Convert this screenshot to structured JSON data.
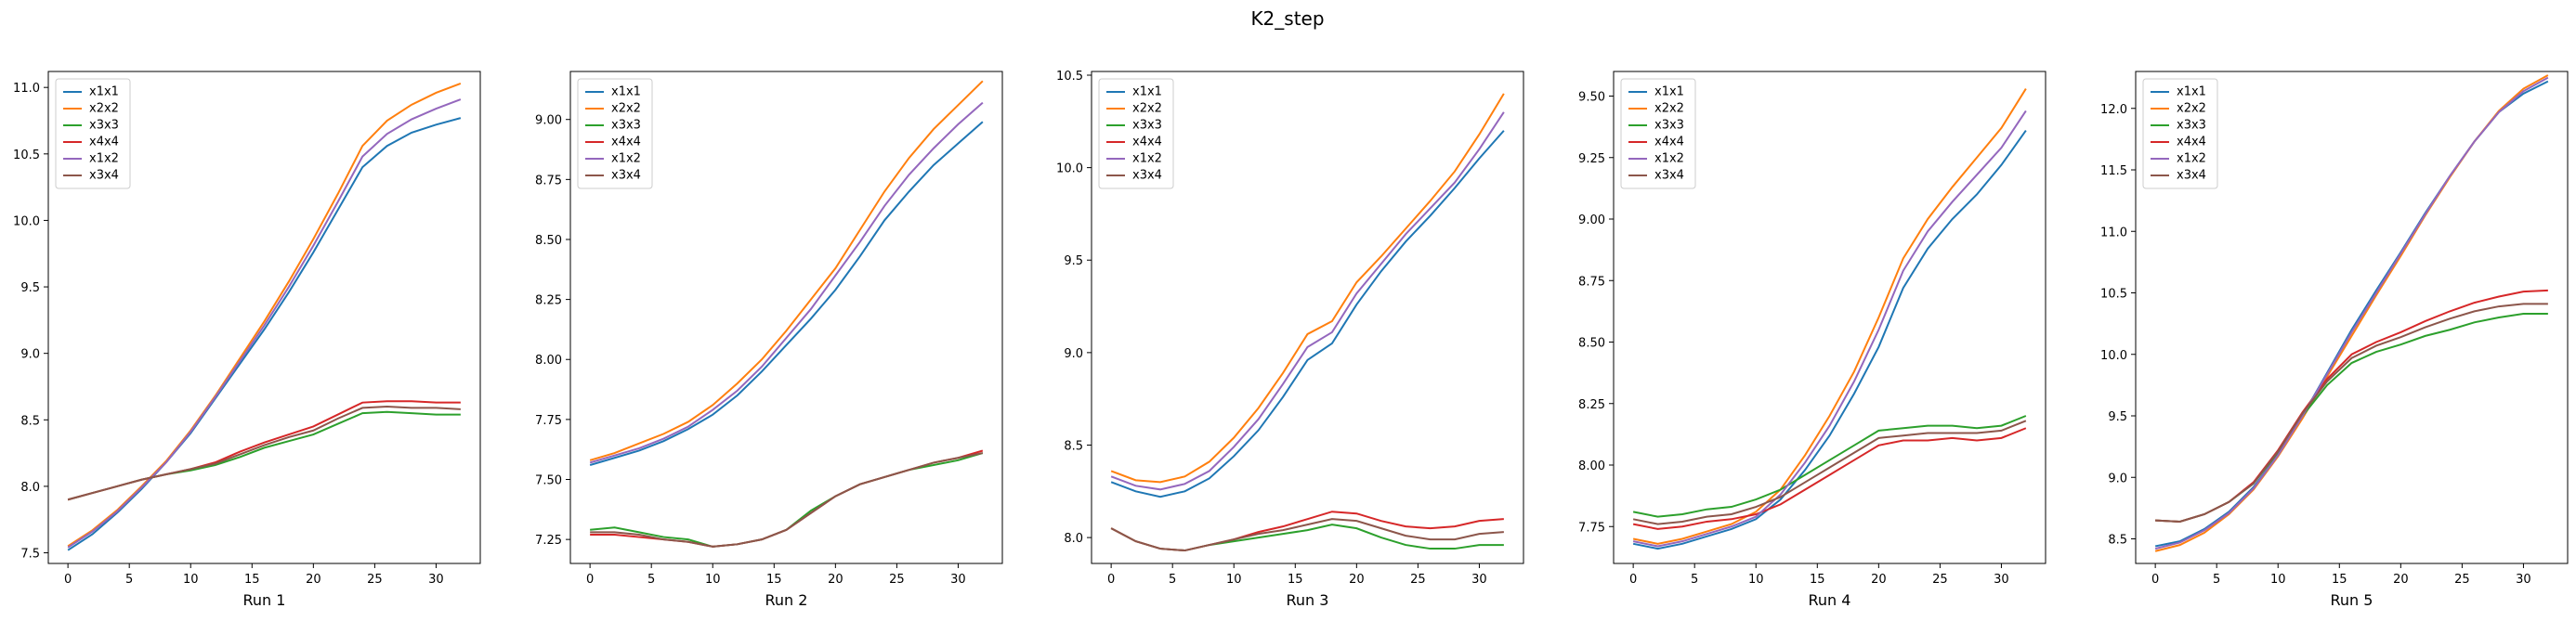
{
  "title": "K2_step",
  "chart_data": [
    {
      "type": "line",
      "xlabel": "Run 1",
      "legend": "upper left",
      "x": [
        0,
        2,
        4,
        6,
        8,
        10,
        12,
        14,
        16,
        18,
        20,
        22,
        24,
        26,
        28,
        30,
        32
      ],
      "xlim": [
        -1.6,
        33.6
      ],
      "xticks": [
        0,
        5,
        10,
        15,
        20,
        25,
        30
      ],
      "ylim": [
        7.42,
        11.12
      ],
      "yticks": [
        7.5,
        {
          "value": 8,
          "label": "8.0"
        },
        8.5,
        {
          "value": 9,
          "label": "9.0"
        },
        9.5,
        {
          "value": 10,
          "label": "10.0"
        },
        10.5,
        {
          "value": 11,
          "label": "11.0"
        }
      ],
      "series": [
        {
          "name": "x1x1",
          "color": "#1f77b4",
          "values": [
            7.52,
            7.64,
            7.8,
            7.98,
            8.18,
            8.4,
            8.66,
            8.92,
            9.18,
            9.46,
            9.76,
            10.08,
            10.4,
            10.56,
            10.66,
            10.72,
            10.77
          ]
        },
        {
          "name": "x2x2",
          "color": "#ff7f0e",
          "values": [
            7.55,
            7.67,
            7.82,
            8.0,
            8.19,
            8.42,
            8.68,
            8.96,
            9.24,
            9.54,
            9.86,
            10.2,
            10.56,
            10.75,
            10.87,
            10.96,
            11.03
          ]
        },
        {
          "name": "x3x3",
          "color": "#2ca02c",
          "values": [
            7.9,
            7.95,
            8.0,
            8.05,
            8.09,
            8.12,
            8.16,
            8.22,
            8.29,
            8.34,
            8.39,
            8.47,
            8.55,
            8.56,
            8.55,
            8.54,
            8.54
          ]
        },
        {
          "name": "x4x4",
          "color": "#d62728",
          "values": [
            7.9,
            7.95,
            8.0,
            8.05,
            8.09,
            8.13,
            8.18,
            8.26,
            8.33,
            8.39,
            8.45,
            8.54,
            8.63,
            8.64,
            8.64,
            8.63,
            8.63
          ]
        },
        {
          "name": "x1x2",
          "color": "#9467bd",
          "values": [
            7.54,
            7.66,
            7.81,
            7.99,
            8.18,
            8.41,
            8.67,
            8.94,
            9.21,
            9.5,
            9.81,
            10.14,
            10.48,
            10.65,
            10.76,
            10.84,
            10.91
          ]
        },
        {
          "name": "x3x4",
          "color": "#8c564b",
          "values": [
            7.9,
            7.95,
            8.0,
            8.05,
            8.09,
            8.13,
            8.17,
            8.24,
            8.31,
            8.37,
            8.42,
            8.51,
            8.59,
            8.6,
            8.59,
            8.59,
            8.58
          ]
        }
      ]
    },
    {
      "type": "line",
      "xlabel": "Run 2",
      "legend": "upper left",
      "x": [
        0,
        2,
        4,
        6,
        8,
        10,
        12,
        14,
        16,
        18,
        20,
        22,
        24,
        26,
        28,
        30,
        32
      ],
      "xlim": [
        -1.6,
        33.6
      ],
      "xticks": [
        0,
        5,
        10,
        15,
        20,
        25,
        30
      ],
      "ylim": [
        7.15,
        9.2
      ],
      "yticks": [
        7.25,
        {
          "value": 7.5,
          "label": "7.50"
        },
        7.75,
        {
          "value": 8,
          "label": "8.00"
        },
        8.25,
        {
          "value": 8.5,
          "label": "8.50"
        },
        8.75,
        {
          "value": 9,
          "label": "9.00"
        }
      ],
      "series": [
        {
          "name": "x1x1",
          "color": "#1f77b4",
          "values": [
            7.56,
            7.59,
            7.62,
            7.66,
            7.71,
            7.77,
            7.85,
            7.95,
            8.06,
            8.17,
            8.29,
            8.43,
            8.58,
            8.7,
            8.81,
            8.9,
            8.99
          ]
        },
        {
          "name": "x2x2",
          "color": "#ff7f0e",
          "values": [
            7.58,
            7.61,
            7.65,
            7.69,
            7.74,
            7.81,
            7.9,
            8.0,
            8.12,
            8.25,
            8.38,
            8.54,
            8.7,
            8.84,
            8.96,
            9.06,
            9.16
          ]
        },
        {
          "name": "x3x3",
          "color": "#2ca02c",
          "values": [
            7.29,
            7.3,
            7.28,
            7.26,
            7.25,
            7.22,
            7.23,
            7.25,
            7.29,
            7.37,
            7.43,
            7.48,
            7.51,
            7.54,
            7.56,
            7.58,
            7.61
          ]
        },
        {
          "name": "x4x4",
          "color": "#d62728",
          "values": [
            7.27,
            7.27,
            7.26,
            7.25,
            7.24,
            7.22,
            7.23,
            7.25,
            7.29,
            7.36,
            7.43,
            7.48,
            7.51,
            7.54,
            7.57,
            7.59,
            7.62
          ]
        },
        {
          "name": "x1x2",
          "color": "#9467bd",
          "values": [
            7.57,
            7.6,
            7.63,
            7.67,
            7.72,
            7.79,
            7.87,
            7.97,
            8.09,
            8.21,
            8.35,
            8.49,
            8.64,
            8.77,
            8.88,
            8.98,
            9.07
          ]
        },
        {
          "name": "x3x4",
          "color": "#8c564b",
          "values": [
            7.28,
            7.28,
            7.27,
            7.25,
            7.24,
            7.22,
            7.23,
            7.25,
            7.29,
            7.36,
            7.43,
            7.48,
            7.51,
            7.54,
            7.57,
            7.59,
            7.61
          ]
        }
      ]
    },
    {
      "type": "line",
      "xlabel": "Run 3",
      "legend": "upper left",
      "x": [
        0,
        2,
        4,
        6,
        8,
        10,
        12,
        14,
        16,
        18,
        20,
        22,
        24,
        26,
        28,
        30,
        32
      ],
      "xlim": [
        -1.6,
        33.6
      ],
      "xticks": [
        0,
        5,
        10,
        15,
        20,
        25,
        30
      ],
      "ylim": [
        7.86,
        10.52
      ],
      "yticks": [
        {
          "value": 8,
          "label": "8.0"
        },
        8.5,
        {
          "value": 9,
          "label": "9.0"
        },
        9.5,
        {
          "value": 10,
          "label": "10.0"
        },
        10.5
      ],
      "series": [
        {
          "name": "x1x1",
          "color": "#1f77b4",
          "values": [
            8.3,
            8.25,
            8.22,
            8.25,
            8.32,
            8.44,
            8.58,
            8.76,
            8.96,
            9.05,
            9.26,
            9.44,
            9.6,
            9.74,
            9.89,
            10.05,
            10.2
          ]
        },
        {
          "name": "x2x2",
          "color": "#ff7f0e",
          "values": [
            8.36,
            8.31,
            8.3,
            8.33,
            8.41,
            8.54,
            8.7,
            8.89,
            9.1,
            9.17,
            9.38,
            9.52,
            9.67,
            9.82,
            9.98,
            10.18,
            10.4
          ]
        },
        {
          "name": "x3x3",
          "color": "#2ca02c",
          "values": [
            8.05,
            7.98,
            7.94,
            7.93,
            7.96,
            7.98,
            8.0,
            8.02,
            8.04,
            8.07,
            8.05,
            8.0,
            7.96,
            7.94,
            7.94,
            7.96,
            7.96
          ]
        },
        {
          "name": "x4x4",
          "color": "#d62728",
          "values": [
            8.05,
            7.98,
            7.94,
            7.93,
            7.96,
            7.99,
            8.03,
            8.06,
            8.1,
            8.14,
            8.13,
            8.09,
            8.06,
            8.05,
            8.06,
            8.09,
            8.1
          ]
        },
        {
          "name": "x1x2",
          "color": "#9467bd",
          "values": [
            8.33,
            8.28,
            8.26,
            8.29,
            8.36,
            8.49,
            8.64,
            8.83,
            9.03,
            9.11,
            9.32,
            9.48,
            9.64,
            9.78,
            9.92,
            10.1,
            10.3
          ]
        },
        {
          "name": "x3x4",
          "color": "#8c564b",
          "values": [
            8.05,
            7.98,
            7.94,
            7.93,
            7.96,
            7.99,
            8.02,
            8.04,
            8.07,
            8.1,
            8.09,
            8.05,
            8.01,
            7.99,
            7.99,
            8.02,
            8.03
          ]
        }
      ]
    },
    {
      "type": "line",
      "xlabel": "Run 4",
      "legend": "upper left",
      "x": [
        0,
        2,
        4,
        6,
        8,
        10,
        12,
        14,
        16,
        18,
        20,
        22,
        24,
        26,
        28,
        30,
        32
      ],
      "xlim": [
        -1.6,
        33.6
      ],
      "xticks": [
        0,
        5,
        10,
        15,
        20,
        25,
        30
      ],
      "ylim": [
        7.6,
        9.6
      ],
      "yticks": [
        7.75,
        {
          "value": 8,
          "label": "8.00"
        },
        8.25,
        {
          "value": 8.5,
          "label": "8.50"
        },
        8.75,
        {
          "value": 9,
          "label": "9.00"
        },
        9.25,
        {
          "value": 9.5,
          "label": "9.50"
        }
      ],
      "series": [
        {
          "name": "x1x1",
          "color": "#1f77b4",
          "values": [
            7.68,
            7.66,
            7.68,
            7.71,
            7.74,
            7.78,
            7.86,
            7.98,
            8.12,
            8.29,
            8.48,
            8.72,
            8.88,
            9.0,
            9.1,
            9.22,
            9.36
          ]
        },
        {
          "name": "x2x2",
          "color": "#ff7f0e",
          "values": [
            7.7,
            7.68,
            7.7,
            7.73,
            7.76,
            7.81,
            7.9,
            8.04,
            8.2,
            8.38,
            8.6,
            8.84,
            9.0,
            9.13,
            9.25,
            9.37,
            9.53
          ]
        },
        {
          "name": "x3x3",
          "color": "#2ca02c",
          "values": [
            7.81,
            7.79,
            7.8,
            7.82,
            7.83,
            7.86,
            7.9,
            7.96,
            8.02,
            8.08,
            8.14,
            8.15,
            8.16,
            8.16,
            8.15,
            8.16,
            8.2
          ]
        },
        {
          "name": "x4x4",
          "color": "#d62728",
          "values": [
            7.76,
            7.74,
            7.75,
            7.77,
            7.78,
            7.8,
            7.84,
            7.9,
            7.96,
            8.02,
            8.08,
            8.1,
            8.1,
            8.11,
            8.1,
            8.11,
            8.15
          ]
        },
        {
          "name": "x1x2",
          "color": "#9467bd",
          "values": [
            7.69,
            7.67,
            7.69,
            7.72,
            7.75,
            7.79,
            7.88,
            8.01,
            8.16,
            8.34,
            8.55,
            8.79,
            8.95,
            9.07,
            9.18,
            9.29,
            9.44
          ]
        },
        {
          "name": "x3x4",
          "color": "#8c564b",
          "values": [
            7.78,
            7.76,
            7.77,
            7.79,
            7.8,
            7.83,
            7.87,
            7.93,
            7.99,
            8.05,
            8.11,
            8.12,
            8.13,
            8.13,
            8.13,
            8.14,
            8.18
          ]
        }
      ]
    },
    {
      "type": "line",
      "xlabel": "Run 5",
      "legend": "upper left",
      "x": [
        0,
        2,
        4,
        6,
        8,
        10,
        12,
        14,
        16,
        18,
        20,
        22,
        24,
        26,
        28,
        30,
        32
      ],
      "xlim": [
        -1.6,
        33.6
      ],
      "xticks": [
        0,
        5,
        10,
        15,
        20,
        25,
        30
      ],
      "ylim": [
        8.3,
        12.3
      ],
      "yticks": [
        8.5,
        {
          "value": 9,
          "label": "9.0"
        },
        9.5,
        {
          "value": 10,
          "label": "10.0"
        },
        10.5,
        {
          "value": 11,
          "label": "11.0"
        },
        11.5,
        {
          "value": 12,
          "label": "12.0"
        }
      ],
      "series": [
        {
          "name": "x1x1",
          "color": "#1f77b4",
          "values": [
            8.44,
            8.48,
            8.58,
            8.72,
            8.92,
            9.18,
            9.5,
            9.85,
            10.2,
            10.52,
            10.83,
            11.15,
            11.45,
            11.73,
            11.97,
            12.12,
            12.22
          ]
        },
        {
          "name": "x2x2",
          "color": "#ff7f0e",
          "values": [
            8.4,
            8.45,
            8.55,
            8.7,
            8.9,
            9.17,
            9.48,
            9.82,
            10.15,
            10.48,
            10.8,
            11.13,
            11.44,
            11.73,
            11.98,
            12.16,
            12.27
          ]
        },
        {
          "name": "x3x3",
          "color": "#2ca02c",
          "values": [
            8.65,
            8.64,
            8.7,
            8.8,
            8.95,
            9.2,
            9.5,
            9.75,
            9.93,
            10.02,
            10.08,
            10.15,
            10.2,
            10.26,
            10.3,
            10.33,
            10.33
          ]
        },
        {
          "name": "x4x4",
          "color": "#d62728",
          "values": [
            8.65,
            8.64,
            8.7,
            8.8,
            8.96,
            9.22,
            9.53,
            9.8,
            10.0,
            10.1,
            10.18,
            10.27,
            10.35,
            10.42,
            10.47,
            10.51,
            10.52
          ]
        },
        {
          "name": "x1x2",
          "color": "#9467bd",
          "values": [
            8.42,
            8.47,
            8.57,
            8.71,
            8.91,
            9.18,
            9.5,
            9.84,
            10.18,
            10.5,
            10.82,
            11.14,
            11.45,
            11.73,
            11.97,
            12.14,
            12.25
          ]
        },
        {
          "name": "x3x4",
          "color": "#8c564b",
          "values": [
            8.65,
            8.64,
            8.7,
            8.8,
            8.95,
            9.21,
            9.52,
            9.78,
            9.97,
            10.07,
            10.14,
            10.22,
            10.29,
            10.35,
            10.39,
            10.41,
            10.41
          ]
        }
      ]
    }
  ]
}
